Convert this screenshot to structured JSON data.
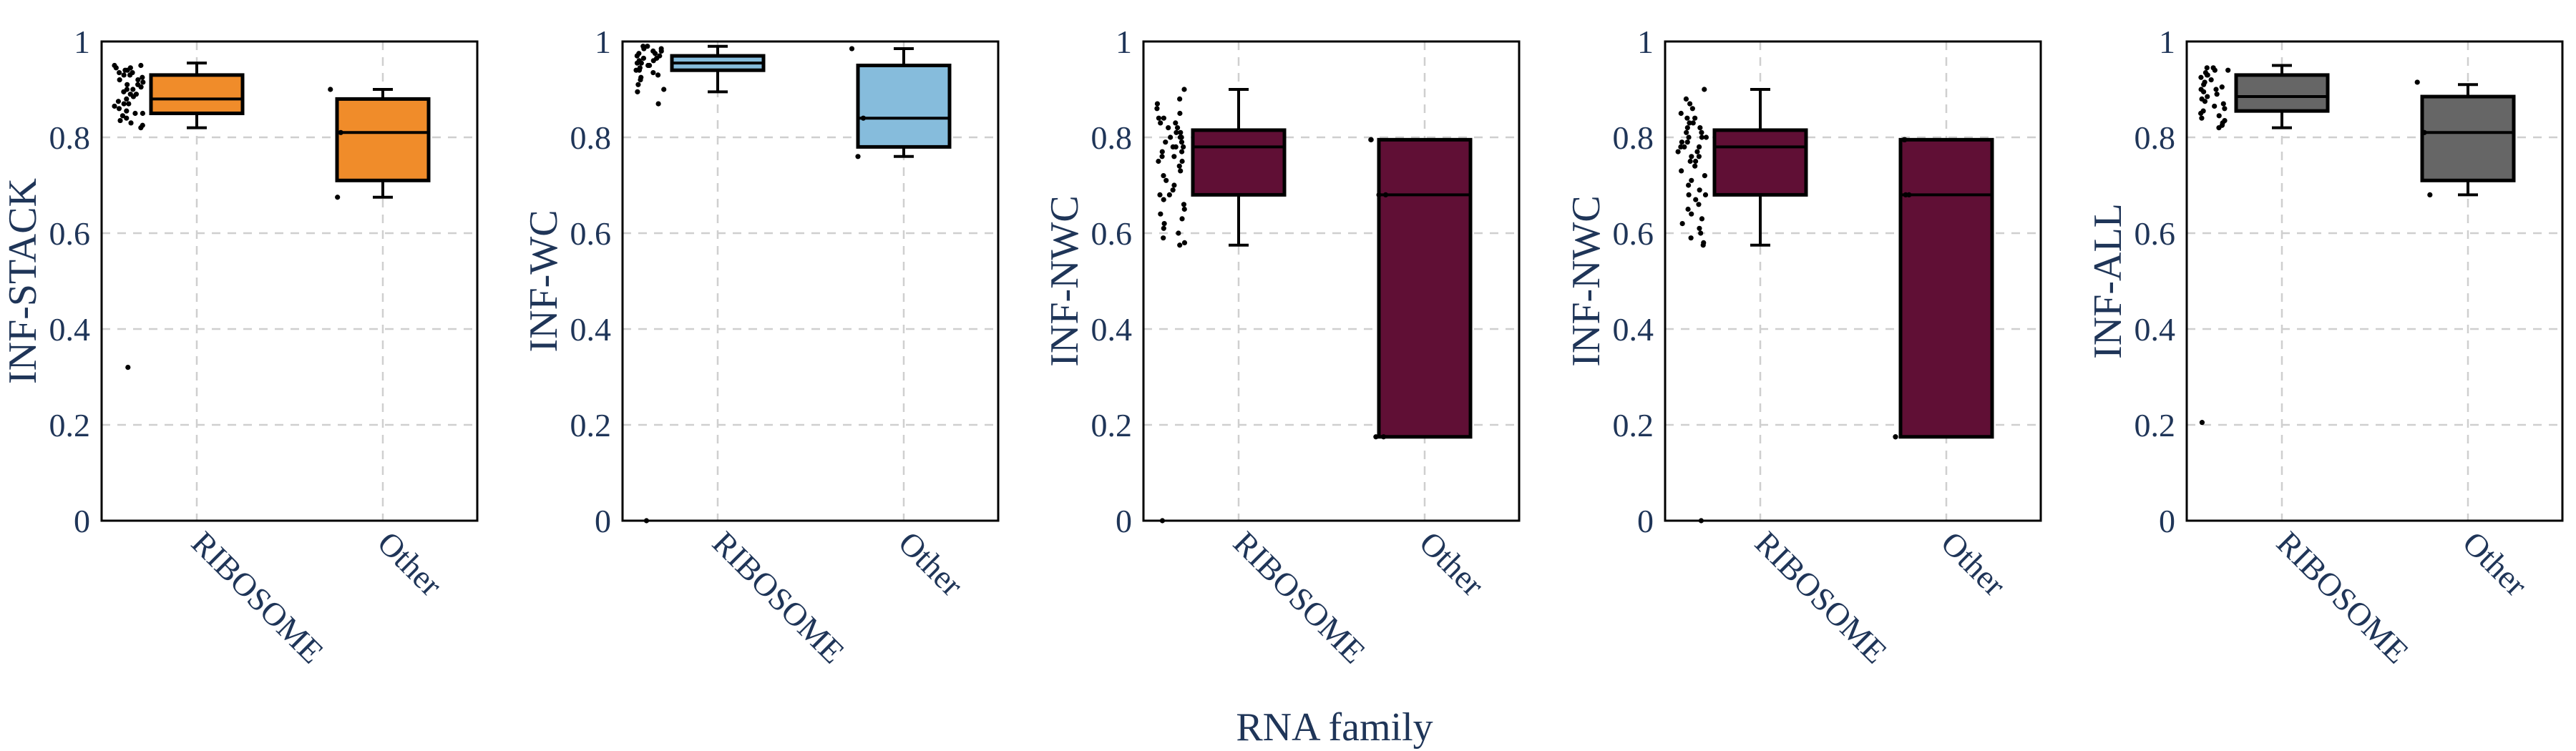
{
  "chart_data": [
    {
      "type": "box",
      "ylabel": "INF-STACK",
      "color": "#f08c2a",
      "categories": [
        "RIBOSOME",
        "Other"
      ],
      "ylim": [
        0,
        1
      ],
      "yticks": [
        "0",
        "0.2",
        "0.4",
        "0.6",
        "0.8",
        "1"
      ],
      "grid": true,
      "boxes": [
        {
          "category": "RIBOSOME",
          "whisker_low": 0.82,
          "q1": 0.85,
          "median": 0.88,
          "q3": 0.93,
          "whisker_high": 0.955
        },
        {
          "category": "Other",
          "whisker_low": 0.675,
          "q1": 0.71,
          "median": 0.81,
          "q3": 0.88,
          "whisker_high": 0.9
        }
      ],
      "points": [
        {
          "category": "RIBOSOME",
          "values": [
            0.95,
            0.95,
            0.945,
            0.945,
            0.94,
            0.94,
            0.935,
            0.935,
            0.93,
            0.93,
            0.925,
            0.92,
            0.92,
            0.915,
            0.91,
            0.91,
            0.905,
            0.9,
            0.9,
            0.895,
            0.89,
            0.89,
            0.885,
            0.88,
            0.875,
            0.87,
            0.87,
            0.865,
            0.86,
            0.855,
            0.85,
            0.85,
            0.845,
            0.84,
            0.835,
            0.83,
            0.825,
            0.82,
            0.32
          ]
        },
        {
          "category": "Other",
          "values": [
            0.9,
            0.81,
            0.675
          ]
        }
      ]
    },
    {
      "type": "box",
      "ylabel": "INF-WC",
      "color": "#86bcdc",
      "categories": [
        "RIBOSOME",
        "Other"
      ],
      "ylim": [
        0,
        1
      ],
      "yticks": [
        "0",
        "0.2",
        "0.4",
        "0.6",
        "0.8",
        "1"
      ],
      "grid": true,
      "boxes": [
        {
          "category": "RIBOSOME",
          "whisker_low": 0.895,
          "q1": 0.94,
          "median": 0.955,
          "q3": 0.97,
          "whisker_high": 0.99
        },
        {
          "category": "Other",
          "whisker_low": 0.76,
          "q1": 0.78,
          "median": 0.84,
          "q3": 0.95,
          "whisker_high": 0.985
        }
      ],
      "points": [
        {
          "category": "RIBOSOME",
          "values": [
            0.99,
            0.99,
            0.985,
            0.985,
            0.98,
            0.98,
            0.975,
            0.975,
            0.97,
            0.97,
            0.965,
            0.965,
            0.96,
            0.96,
            0.955,
            0.955,
            0.95,
            0.95,
            0.945,
            0.94,
            0.94,
            0.935,
            0.93,
            0.925,
            0.92,
            0.91,
            0.9,
            0.895,
            0.87,
            0.0
          ]
        },
        {
          "category": "Other",
          "values": [
            0.985,
            0.84,
            0.76
          ]
        }
      ]
    },
    {
      "type": "box",
      "ylabel": "INF-NWC",
      "color": "#600f35",
      "categories": [
        "RIBOSOME",
        "Other"
      ],
      "ylim": [
        0,
        1
      ],
      "yticks": [
        "0",
        "0.2",
        "0.4",
        "0.6",
        "0.8",
        "1"
      ],
      "grid": true,
      "boxes": [
        {
          "category": "RIBOSOME",
          "whisker_low": 0.575,
          "q1": 0.68,
          "median": 0.78,
          "q3": 0.815,
          "whisker_high": 0.9
        },
        {
          "category": "Other",
          "whisker_low": 0.175,
          "q1": 0.175,
          "median": 0.68,
          "q3": 0.795,
          "whisker_high": 0.795
        }
      ],
      "points": [
        {
          "category": "RIBOSOME",
          "values": [
            0.9,
            0.88,
            0.87,
            0.86,
            0.85,
            0.84,
            0.84,
            0.83,
            0.83,
            0.82,
            0.82,
            0.81,
            0.81,
            0.8,
            0.8,
            0.8,
            0.79,
            0.79,
            0.78,
            0.78,
            0.78,
            0.77,
            0.77,
            0.76,
            0.76,
            0.75,
            0.75,
            0.74,
            0.73,
            0.72,
            0.71,
            0.7,
            0.69,
            0.68,
            0.68,
            0.67,
            0.66,
            0.65,
            0.64,
            0.63,
            0.62,
            0.61,
            0.6,
            0.59,
            0.58,
            0.575,
            0.0
          ]
        },
        {
          "category": "Other",
          "values": [
            0.795,
            0.795,
            0.68,
            0.68,
            0.175,
            0.175
          ]
        }
      ]
    },
    {
      "type": "box",
      "ylabel": "INF-NWC",
      "color": "#600f35",
      "categories": [
        "RIBOSOME",
        "Other"
      ],
      "ylim": [
        0,
        1
      ],
      "yticks": [
        "0",
        "0.2",
        "0.4",
        "0.6",
        "0.8",
        "1"
      ],
      "grid": true,
      "boxes": [
        {
          "category": "RIBOSOME",
          "whisker_low": 0.575,
          "q1": 0.68,
          "median": 0.78,
          "q3": 0.815,
          "whisker_high": 0.9
        },
        {
          "category": "Other",
          "whisker_low": 0.175,
          "q1": 0.175,
          "median": 0.68,
          "q3": 0.795,
          "whisker_high": 0.795
        }
      ],
      "points": [
        {
          "category": "RIBOSOME",
          "values": [
            0.9,
            0.88,
            0.87,
            0.86,
            0.85,
            0.84,
            0.84,
            0.83,
            0.83,
            0.82,
            0.82,
            0.81,
            0.81,
            0.8,
            0.8,
            0.8,
            0.79,
            0.79,
            0.78,
            0.78,
            0.78,
            0.77,
            0.77,
            0.76,
            0.76,
            0.75,
            0.75,
            0.74,
            0.73,
            0.72,
            0.71,
            0.7,
            0.69,
            0.68,
            0.68,
            0.67,
            0.66,
            0.65,
            0.64,
            0.63,
            0.62,
            0.61,
            0.6,
            0.59,
            0.58,
            0.575,
            0.0
          ]
        },
        {
          "category": "Other",
          "values": [
            0.795,
            0.795,
            0.68,
            0.68,
            0.175,
            0.175
          ]
        }
      ]
    },
    {
      "type": "box",
      "ylabel": "INF-ALL",
      "color": "#666666",
      "categories": [
        "RIBOSOME",
        "Other"
      ],
      "ylim": [
        0,
        1
      ],
      "yticks": [
        "0",
        "0.2",
        "0.4",
        "0.6",
        "0.8",
        "1"
      ],
      "grid": true,
      "boxes": [
        {
          "category": "RIBOSOME",
          "whisker_low": 0.82,
          "q1": 0.855,
          "median": 0.885,
          "q3": 0.93,
          "whisker_high": 0.95
        },
        {
          "category": "Other",
          "whisker_low": 0.68,
          "q1": 0.71,
          "median": 0.81,
          "q3": 0.885,
          "whisker_high": 0.91
        }
      ],
      "points": [
        {
          "category": "RIBOSOME",
          "values": [
            0.945,
            0.945,
            0.94,
            0.94,
            0.935,
            0.93,
            0.93,
            0.925,
            0.92,
            0.915,
            0.91,
            0.905,
            0.9,
            0.9,
            0.895,
            0.89,
            0.885,
            0.88,
            0.875,
            0.87,
            0.865,
            0.86,
            0.855,
            0.85,
            0.845,
            0.84,
            0.835,
            0.83,
            0.825,
            0.82,
            0.205
          ]
        },
        {
          "category": "Other",
          "values": [
            0.915,
            0.81,
            0.68
          ]
        }
      ]
    }
  ],
  "shared_xlabel": "RNA family"
}
